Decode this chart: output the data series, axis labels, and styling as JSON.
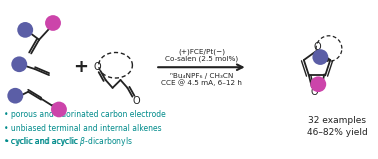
{
  "bg_color": "#ffffff",
  "teal_color": "#008B8B",
  "blue_color": "#5B5EA6",
  "magenta_color": "#CC44AA",
  "black_color": "#222222",
  "bullet_lines": [
    "• porous and fluorinated carbon electrode",
    "• unbiased terminal and internal alkenes",
    "• cyclic and acyclic β-dicarbonyls"
  ],
  "right_text_line1": "32 examples",
  "right_text_line2": "46–82% yield",
  "rxn_line1": "(+)FCE/Pt(−)",
  "rxn_line2": "Co-salen (2.5 mol%)",
  "rxn_line3": "ⁿBu₄NPF₆ / CH₃CN",
  "rxn_line4": "CCE @ 4.5 mA, 6–12 h"
}
